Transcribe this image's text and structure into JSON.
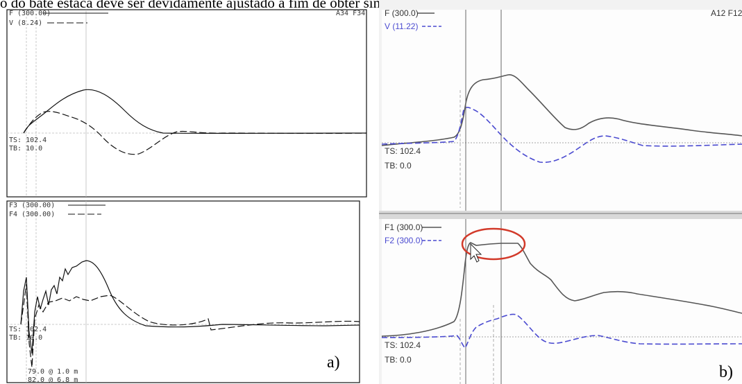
{
  "caption": "o do bate estaca deve ser devidamente ajustado a fim de obter sinal de melhor qualidade.",
  "figure_a": {
    "label": "a)",
    "top": {
      "legend": [
        {
          "text": "F (300.00)",
          "style": "solid"
        },
        {
          "text": "V (8.24)",
          "style": "dashed"
        }
      ],
      "corner": "A34 F34",
      "ts": "TS: 102.4",
      "tb": "TB: 10.0"
    },
    "bottom": {
      "legend": [
        {
          "text": "F3 (300.00)",
          "style": "solid"
        },
        {
          "text": "F4 (300.00)",
          "style": "dashed"
        }
      ],
      "ts": "TS: 102.4",
      "tb": "TB: 10.0",
      "readout_1": "79.0 @ 1.0 m",
      "readout_2": "82.0 @ 6.8 m"
    }
  },
  "figure_b": {
    "label": "b)",
    "top": {
      "legend": [
        {
          "text": "F (300.0)",
          "style": "solid",
          "color": "#555555"
        },
        {
          "text": "V (11.22)",
          "style": "dashed",
          "color": "#4a4ad0"
        }
      ],
      "corner": "A12 F12",
      "ts": "TS: 102.4",
      "tb": "TB: 0.0"
    },
    "bottom": {
      "legend": [
        {
          "text": "F1 (300.0)",
          "style": "solid",
          "color": "#555555"
        },
        {
          "text": "F2 (300.0)",
          "style": "dashed",
          "color": "#4a4ad0"
        }
      ],
      "ts": "TS: 102.4",
      "tb": "TB: 0.0",
      "highlight_color": "#d23a2a"
    }
  },
  "colors": {
    "blue_trace": "#4a4ad0",
    "grey_trace": "#555555",
    "highlight": "#d23a2a"
  }
}
